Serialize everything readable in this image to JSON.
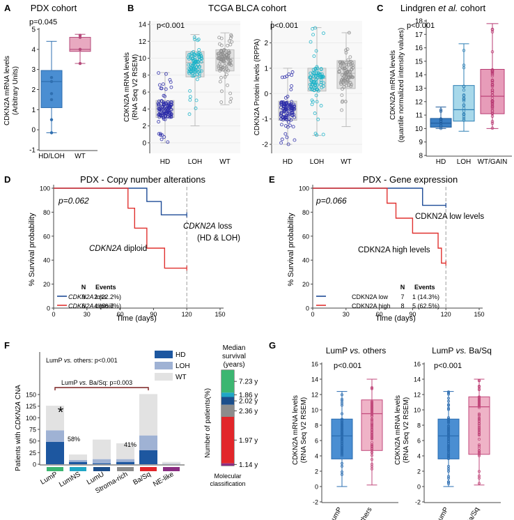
{
  "figure": {
    "panel_labels": {
      "a": "A",
      "b": "B",
      "c": "C",
      "d": "D",
      "e": "E",
      "f": "F",
      "g": "G"
    },
    "colors": {
      "blue": "#3a7fc4",
      "blue_dark": "#1f5fa3",
      "light_blue": "#a9d6e8",
      "teal": "#18a9c0",
      "pink": "#e7a8bf",
      "magenta": "#cc4a7e",
      "gray": "#9a9a9a",
      "navy": "#1c4a96",
      "red": "#e0312f",
      "hd": "#1d57a0",
      "loh": "#9fb2d4",
      "wt": "#e2e2e2"
    }
  },
  "chart_data": [
    {
      "id": "A",
      "type": "box",
      "title": "PDX cohort",
      "pvalue": "p=0.045",
      "ylabel": "CDKN2A mRNA levels",
      "ylabel2": "(Arbitrary Units)",
      "categories": [
        "HD/LOH",
        "WT"
      ],
      "ylim": [
        -1,
        5
      ],
      "yticks": [
        "-1",
        "0",
        "1",
        "2",
        "3",
        "4",
        "5"
      ],
      "boxes": [
        {
          "name": "HD/LOH",
          "q1": 1.1,
          "median": 2.4,
          "q3": 2.95,
          "whisker_low": -0.15,
          "whisker_high": 4.4,
          "points": [
            2.4,
            1.8,
            1.5,
            0.5,
            -0.15,
            2.6
          ]
        },
        {
          "name": "WT",
          "q1": 3.9,
          "median": 4.0,
          "q3": 4.6,
          "whisker_low": 3.3,
          "whisker_high": 4.75,
          "points": [
            4.7,
            4.0,
            3.3,
            4.6
          ]
        }
      ]
    },
    {
      "id": "B1",
      "type": "box",
      "title": "TCGA BLCA cohort",
      "pvalue": "p<0.001",
      "ylabel": "CDKN2A mRNA levels",
      "ylabel2": "(RNA Seq V2 RSEM)",
      "categories": [
        "HD",
        "LOH",
        "WT"
      ],
      "ylim": [
        -1,
        14
      ],
      "yticks": [
        "0",
        "2",
        "4",
        "6",
        "8",
        "10",
        "12",
        "14"
      ],
      "boxes": [
        {
          "name": "HD",
          "q1": 3.0,
          "median": 4.0,
          "q3": 5.0,
          "whisker_low": 0.0,
          "whisker_high": 8.3
        },
        {
          "name": "LOH",
          "q1": 7.8,
          "median": 9.5,
          "q3": 10.8,
          "whisker_low": 2.0,
          "whisker_high": 12.8
        },
        {
          "name": "WT",
          "q1": 8.5,
          "median": 10.0,
          "q3": 11.0,
          "whisker_low": 4.5,
          "whisker_high": 13.0
        }
      ]
    },
    {
      "id": "B2",
      "type": "box",
      "pvalue": "p<0.001",
      "ylabel": "CDKN2A Protein levels (RPPA)",
      "categories": [
        "HD",
        "LOH",
        "WT"
      ],
      "ylim": [
        -2.3,
        2.7
      ],
      "yticks": [
        "-2",
        "-1",
        "0",
        "1",
        "2"
      ],
      "boxes": [
        {
          "name": "HD",
          "q1": -1.05,
          "median": -0.6,
          "q3": -0.3,
          "whisker_low": -2.0,
          "whisker_high": 1.0
        },
        {
          "name": "LOH",
          "q1": 0.1,
          "median": 0.6,
          "q3": 1.0,
          "whisker_low": -1.65,
          "whisker_high": 2.6
        },
        {
          "name": "WT",
          "q1": 0.2,
          "median": 0.8,
          "q3": 1.3,
          "whisker_low": -1.3,
          "whisker_high": 2.4
        }
      ]
    },
    {
      "id": "C",
      "type": "box",
      "title": "Lindgren et al. cohort",
      "pvalue": "p<0.001",
      "ylabel": "CDKN2A mRNA levels",
      "ylabel2": "(quantile normalized intensity values)",
      "categories": [
        "HD",
        "LOH",
        "WT/GAIN"
      ],
      "ylim": [
        8,
        18
      ],
      "yticks": [
        "8",
        "9",
        "10",
        "11",
        "12",
        "13",
        "14",
        "15",
        "16",
        "17",
        "18"
      ],
      "boxes": [
        {
          "name": "HD",
          "q1": 10.1,
          "median": 10.4,
          "q3": 10.75,
          "whisker_low": 10.0,
          "whisker_high": 11.6
        },
        {
          "name": "LOH",
          "q1": 10.55,
          "median": 11.4,
          "q3": 13.2,
          "whisker_low": 9.8,
          "whisker_high": 16.3
        },
        {
          "name": "WT/GAIN",
          "q1": 11.1,
          "median": 12.4,
          "q3": 14.4,
          "whisker_low": 10.0,
          "whisker_high": 17.8
        }
      ]
    },
    {
      "id": "D",
      "type": "line",
      "title": "PDX - Copy number alterations",
      "pvalue": "p=0.062",
      "xlabel": "Time (days)",
      "ylabel": "% Survival probability",
      "xlim": [
        0,
        150
      ],
      "ylim": [
        0,
        100
      ],
      "xticks": [
        "0",
        "30",
        "60",
        "90",
        "120",
        "150"
      ],
      "yticks": [
        "0",
        "20",
        "40",
        "60",
        "80",
        "100"
      ],
      "annotations": {
        "loss_1": "CDKN2A",
        "loss_2": " loss",
        "loss_3": "(HD & LOH)",
        "diploid_1": "CDKN2A",
        "diploid_2": " diploid"
      },
      "table": {
        "header_n": "N",
        "header_events": "Events",
        "rows": [
          {
            "gene": "CDKN2A",
            "label": " loss",
            "n": "9",
            "events": "2 (22.2%)"
          },
          {
            "gene": "CDKN2A",
            "label": " diploid",
            "n": "6",
            "events": "4 (66.7%)"
          }
        ]
      },
      "series": [
        {
          "name": "CDKN2A loss",
          "x": [
            0,
            84,
            84,
            97,
            97,
            109,
            109,
            120
          ],
          "y": [
            100,
            100,
            88.9,
            88.9,
            77.8,
            77.8,
            77.8,
            77.8
          ]
        },
        {
          "name": "CDKN2A diploid",
          "x": [
            0,
            67,
            67,
            73,
            73,
            84,
            84,
            100,
            100,
            115,
            115,
            120
          ],
          "y": [
            100,
            100,
            83.3,
            83.3,
            66.7,
            66.7,
            50,
            50,
            33.3,
            33.3,
            33.3,
            33.3
          ]
        }
      ]
    },
    {
      "id": "E",
      "type": "line",
      "title": "PDX - Gene expression",
      "pvalue": "p=0.066",
      "xlabel": "Time (days)",
      "ylabel": "% Survival probability",
      "xlim": [
        0,
        150
      ],
      "ylim": [
        0,
        100
      ],
      "xticks": [
        "0",
        "30",
        "60",
        "90",
        "120",
        "150"
      ],
      "yticks": [
        "0",
        "20",
        "40",
        "60",
        "80",
        "100"
      ],
      "annotations": {
        "low": "CDKN2A low levels",
        "high": "CDKN2A high levels"
      },
      "table": {
        "header_n": "N",
        "header_events": "Events",
        "rows": [
          {
            "label": "CDKN2A low",
            "n": "7",
            "events": "1 (14.3%)"
          },
          {
            "label": "CDKN2A high",
            "n": "8",
            "events": "5 (62.5%)"
          }
        ]
      },
      "series": [
        {
          "name": "CDKN2A low",
          "x": [
            0,
            99,
            99,
            120
          ],
          "y": [
            100,
            100,
            85.7,
            85.7
          ]
        },
        {
          "name": "CDKN2A high",
          "x": [
            0,
            67,
            67,
            75,
            75,
            90,
            90,
            113,
            113,
            116,
            116,
            120
          ],
          "y": [
            100,
            100,
            87.5,
            87.5,
            75,
            75,
            62.5,
            62.5,
            50,
            50,
            37.5,
            37.5
          ]
        }
      ]
    },
    {
      "id": "F1",
      "type": "bar",
      "ylabel_pre": "Patients with ",
      "ylabel_gene": "CDKN2A",
      "ylabel_post": " CNA",
      "stats_1": "LumP vs. others: p<0.001",
      "stats_2": "LumP vs. Ba/Sq: p=0.003",
      "star": "*",
      "pct_lump": "58%",
      "pct_basq": "41%",
      "ylim": [
        0,
        150
      ],
      "yticks": [
        "0",
        "25",
        "50",
        "75",
        "100",
        "125",
        "150"
      ],
      "categories": [
        "LumP",
        "LumNS",
        "LumU",
        "Stroma-rich",
        "Ba/Sq",
        "NE-like"
      ],
      "category_colors": [
        "#3cb671",
        "#20a6c6",
        "#1c4f8c",
        "#8c8c8c",
        "#e2262a",
        "#8a2d82"
      ],
      "legend": [
        "HD",
        "LOH",
        "WT"
      ],
      "series": [
        {
          "name": "HD",
          "values": [
            48,
            5,
            2,
            5,
            30,
            0
          ]
        },
        {
          "name": "LOH",
          "values": [
            25,
            4,
            9,
            6,
            32,
            1
          ]
        },
        {
          "name": "WT",
          "values": [
            53,
            12,
            42,
            34,
            89,
            4
          ]
        }
      ]
    },
    {
      "id": "F2",
      "type": "bar",
      "subtype": "stacked-single",
      "title_1": "Median",
      "title_2": "survival",
      "title_3": "(years)",
      "ylabel": "Number of patients(%)",
      "xlabel_1": "Molecular",
      "xlabel_2": "classification",
      "segments": [
        {
          "name": "LumP",
          "percent": 23.6,
          "survival": "7.23 y",
          "color": "#3cb671"
        },
        {
          "name": "LumNS",
          "percent": 4.5,
          "survival": "1.86 y",
          "color": "#20a6c6"
        },
        {
          "name": "LumU",
          "percent": 8.2,
          "survival": "2.02 y",
          "color": "#1c4f8c"
        },
        {
          "name": "Stroma-rich",
          "percent": 12.6,
          "survival": "2.36 y",
          "color": "#8c8c8c"
        },
        {
          "name": "Ba/Sq",
          "percent": 48.7,
          "survival": "1.97 y",
          "color": "#e2262a"
        },
        {
          "name": "NE-like",
          "percent": 2.4,
          "survival": "1.14 y",
          "color": "#8a2d82"
        }
      ]
    },
    {
      "id": "G1",
      "type": "box",
      "title_1": "LumP ",
      "title_2": "vs.",
      "title_3": " others",
      "pvalue": "p<0.001",
      "ylabel": "CDKN2A mRNA levels",
      "ylabel2": "(RNA Seq V2 RSEM)",
      "categories": [
        "LumP",
        "Others"
      ],
      "ylim": [
        -2,
        16
      ],
      "yticks": [
        "-2",
        "0",
        "2",
        "4",
        "6",
        "8",
        "10",
        "12",
        "14",
        "16"
      ],
      "boxes": [
        {
          "name": "LumP",
          "q1": 3.6,
          "median": 6.6,
          "q3": 8.8,
          "whisker_low": 0.0,
          "whisker_high": 12.4
        },
        {
          "name": "Others",
          "q1": 4.7,
          "median": 9.5,
          "q3": 11.3,
          "whisker_low": 0.2,
          "whisker_high": 14.0
        }
      ]
    },
    {
      "id": "G2",
      "type": "box",
      "title_1": "LumP ",
      "title_2": "vs.",
      "title_3": " Ba/Sq",
      "pvalue": "p<0.001",
      "ylabel": "CDKN2A mRNA levels",
      "ylabel2": "(RNA Seq V2 RSEM)",
      "categories": [
        "LumP",
        "Ba/Sq"
      ],
      "ylim": [
        -2,
        16
      ],
      "yticks": [
        "-2",
        "0",
        "2",
        "4",
        "6",
        "8",
        "10",
        "12",
        "14",
        "16"
      ],
      "boxes": [
        {
          "name": "LumP",
          "q1": 3.6,
          "median": 6.6,
          "q3": 8.8,
          "whisker_low": 0.0,
          "whisker_high": 12.4
        },
        {
          "name": "Ba/Sq",
          "q1": 4.2,
          "median": 10.4,
          "q3": 11.7,
          "whisker_low": 0.2,
          "whisker_high": 14.0
        }
      ]
    }
  ]
}
